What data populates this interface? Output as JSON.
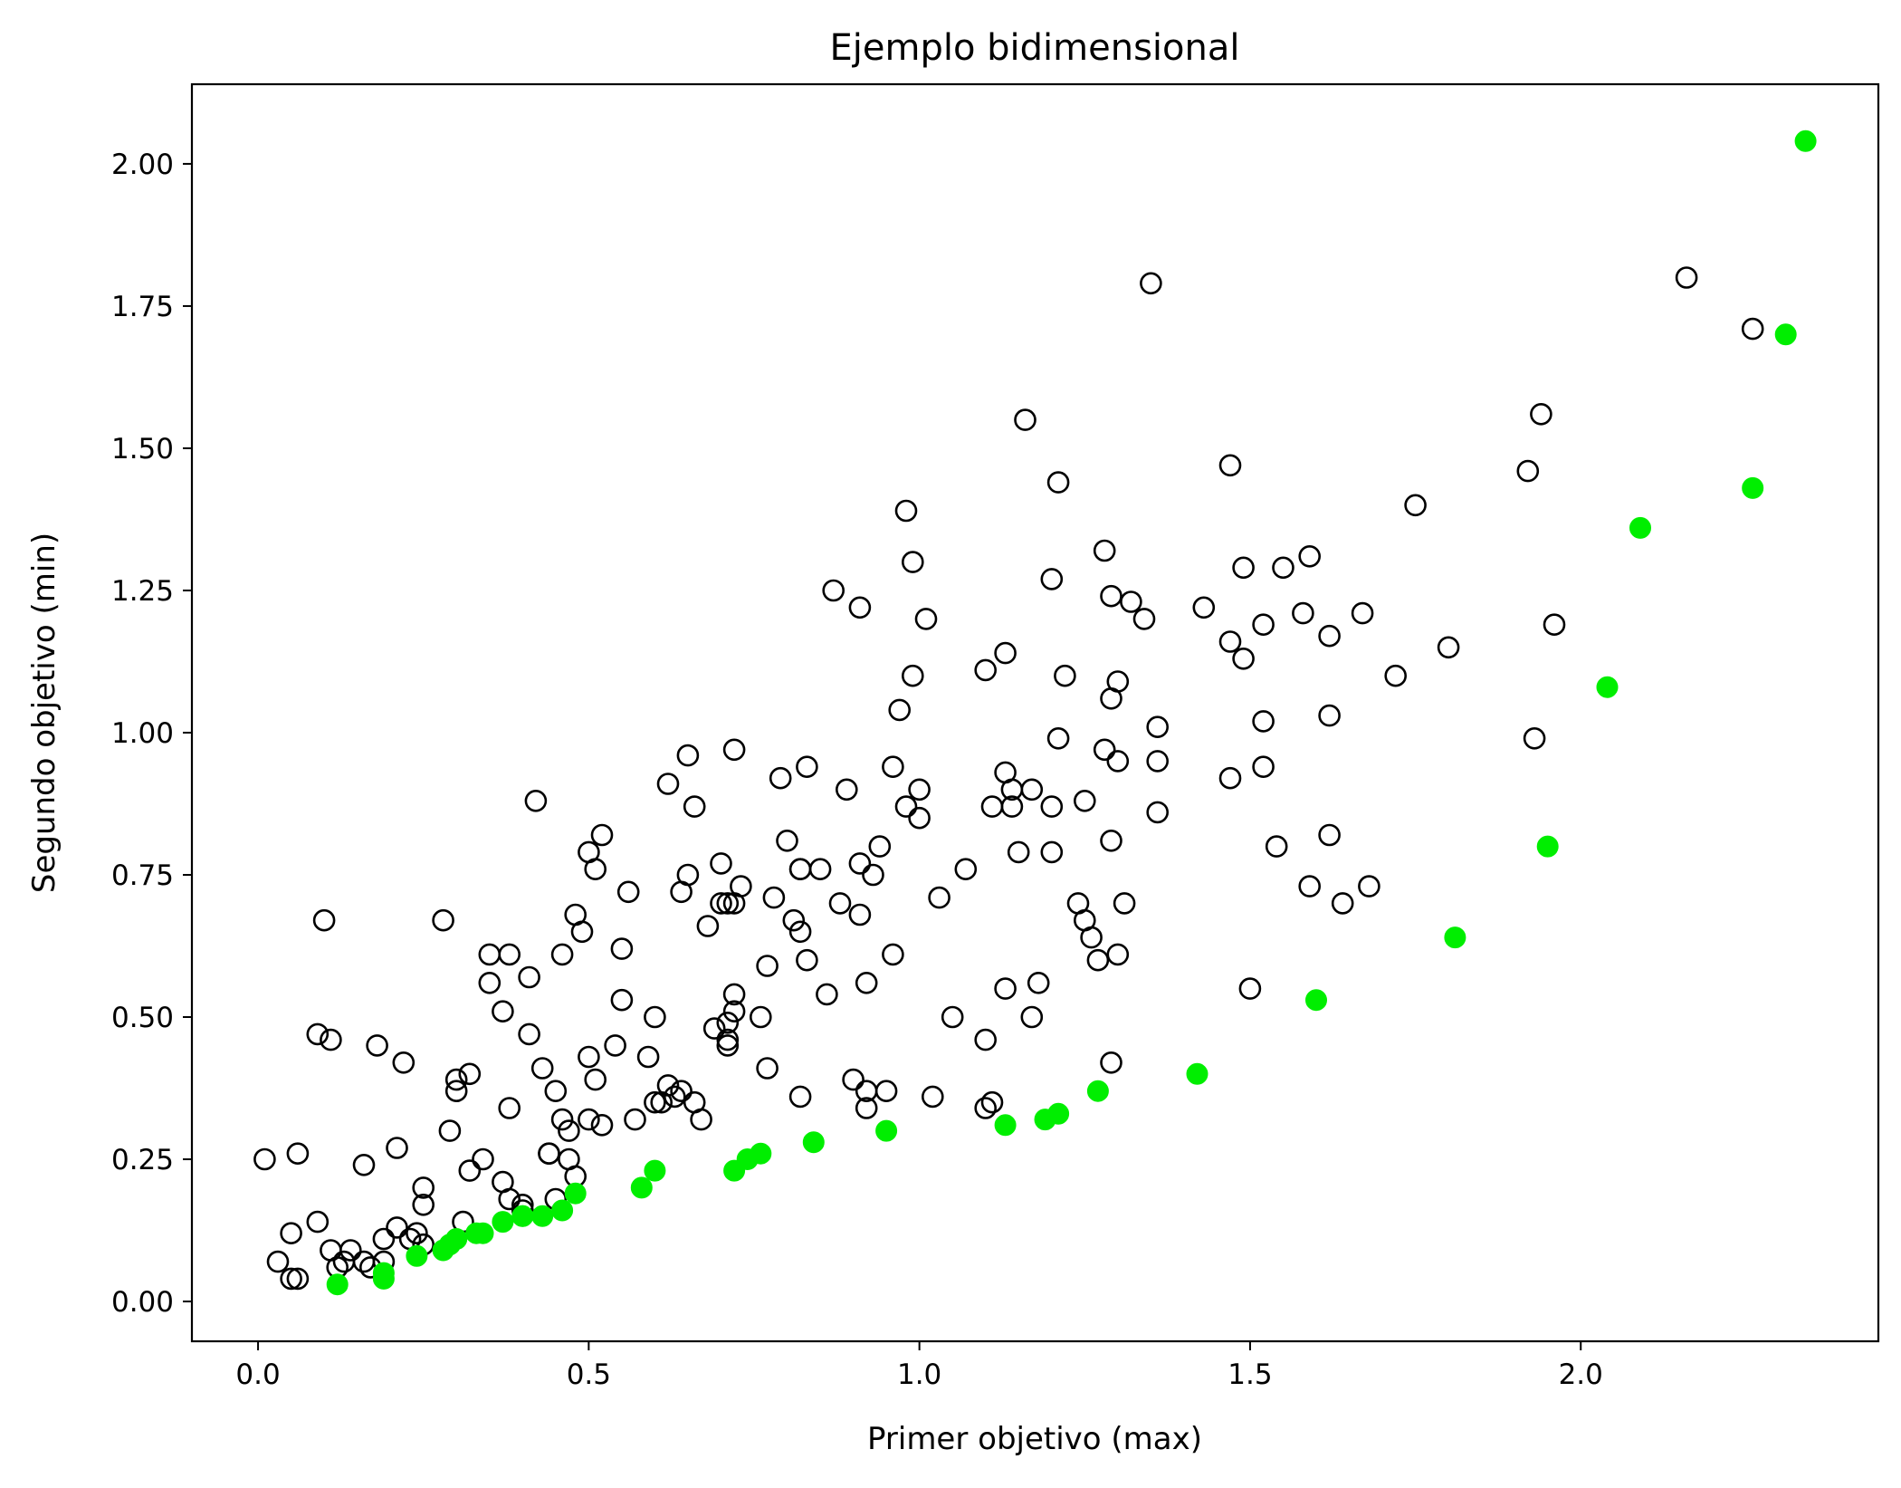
{
  "chart_data": {
    "type": "scatter",
    "title": "Ejemplo bidimensional",
    "xlabel": "Primer objetivo (max)",
    "ylabel": "Segundo objetivo (min)",
    "xlim": [
      -0.1,
      2.45
    ],
    "ylim": [
      -0.07,
      2.14
    ],
    "xticks": [
      0.0,
      0.5,
      1.0,
      1.5,
      2.0
    ],
    "xtick_labels": [
      "0.0",
      "0.5",
      "1.0",
      "1.5",
      "2.0"
    ],
    "yticks": [
      0.0,
      0.25,
      0.5,
      0.75,
      1.0,
      1.25,
      1.5,
      1.75,
      2.0
    ],
    "ytick_labels": [
      "0.00",
      "0.25",
      "0.50",
      "0.75",
      "1.00",
      "1.25",
      "1.50",
      "1.75",
      "2.00"
    ],
    "grid": false,
    "legend": "none",
    "colors": {
      "dominated_edge": "#000000",
      "pareto_fill": "#00ee00"
    },
    "series": [
      {
        "marker": "hollow-circle",
        "color": "#000000",
        "points": [
          [
            0.01,
            0.25
          ],
          [
            0.06,
            0.26
          ],
          [
            0.03,
            0.07
          ],
          [
            0.05,
            0.12
          ],
          [
            0.05,
            0.04
          ],
          [
            0.06,
            0.04
          ],
          [
            0.09,
            0.14
          ],
          [
            0.1,
            0.67
          ],
          [
            0.09,
            0.47
          ],
          [
            0.11,
            0.46
          ],
          [
            0.11,
            0.09
          ],
          [
            0.12,
            0.06
          ],
          [
            0.13,
            0.07
          ],
          [
            0.14,
            0.09
          ],
          [
            0.16,
            0.24
          ],
          [
            0.16,
            0.07
          ],
          [
            0.17,
            0.06
          ],
          [
            0.18,
            0.45
          ],
          [
            0.19,
            0.07
          ],
          [
            0.19,
            0.11
          ],
          [
            0.21,
            0.27
          ],
          [
            0.21,
            0.13
          ],
          [
            0.22,
            0.42
          ],
          [
            0.23,
            0.11
          ],
          [
            0.24,
            0.12
          ],
          [
            0.25,
            0.17
          ],
          [
            0.25,
            0.2
          ],
          [
            0.25,
            0.1
          ],
          [
            0.28,
            0.67
          ],
          [
            0.29,
            0.3
          ],
          [
            0.3,
            0.37
          ],
          [
            0.3,
            0.39
          ],
          [
            0.31,
            0.14
          ],
          [
            0.32,
            0.4
          ],
          [
            0.32,
            0.23
          ],
          [
            0.34,
            0.25
          ],
          [
            0.35,
            0.61
          ],
          [
            0.35,
            0.56
          ],
          [
            0.37,
            0.51
          ],
          [
            0.37,
            0.21
          ],
          [
            0.38,
            0.61
          ],
          [
            0.38,
            0.34
          ],
          [
            0.38,
            0.18
          ],
          [
            0.4,
            0.17
          ],
          [
            0.4,
            0.16
          ],
          [
            0.41,
            0.57
          ],
          [
            0.41,
            0.47
          ],
          [
            0.42,
            0.88
          ],
          [
            0.43,
            0.41
          ],
          [
            0.44,
            0.26
          ],
          [
            0.44,
            0.26
          ],
          [
            0.45,
            0.37
          ],
          [
            0.45,
            0.18
          ],
          [
            0.46,
            0.61
          ],
          [
            0.46,
            0.32
          ],
          [
            0.47,
            0.3
          ],
          [
            0.47,
            0.25
          ],
          [
            0.48,
            0.68
          ],
          [
            0.48,
            0.22
          ],
          [
            0.49,
            0.65
          ],
          [
            0.5,
            0.79
          ],
          [
            0.5,
            0.43
          ],
          [
            0.5,
            0.32
          ],
          [
            0.51,
            0.76
          ],
          [
            0.51,
            0.39
          ],
          [
            0.52,
            0.31
          ],
          [
            0.52,
            0.82
          ],
          [
            0.54,
            0.45
          ],
          [
            0.55,
            0.62
          ],
          [
            0.55,
            0.53
          ],
          [
            0.56,
            0.72
          ],
          [
            0.57,
            0.32
          ],
          [
            0.59,
            0.43
          ],
          [
            0.6,
            0.5
          ],
          [
            0.6,
            0.35
          ],
          [
            0.61,
            0.35
          ],
          [
            0.62,
            0.91
          ],
          [
            0.62,
            0.38
          ],
          [
            0.63,
            0.36
          ],
          [
            0.64,
            0.72
          ],
          [
            0.64,
            0.37
          ],
          [
            0.65,
            0.75
          ],
          [
            0.65,
            0.96
          ],
          [
            0.66,
            0.35
          ],
          [
            0.66,
            0.87
          ],
          [
            0.67,
            0.32
          ],
          [
            0.68,
            0.66
          ],
          [
            0.69,
            0.48
          ],
          [
            0.7,
            0.77
          ],
          [
            0.7,
            0.7
          ],
          [
            0.71,
            0.7
          ],
          [
            0.71,
            0.49
          ],
          [
            0.71,
            0.46
          ],
          [
            0.71,
            0.45
          ],
          [
            0.72,
            0.97
          ],
          [
            0.72,
            0.54
          ],
          [
            0.72,
            0.51
          ],
          [
            0.72,
            0.7
          ],
          [
            0.73,
            0.73
          ],
          [
            0.76,
            0.5
          ],
          [
            0.77,
            0.41
          ],
          [
            0.77,
            0.59
          ],
          [
            0.78,
            0.71
          ],
          [
            0.79,
            0.92
          ],
          [
            0.8,
            0.81
          ],
          [
            0.81,
            0.67
          ],
          [
            0.82,
            0.76
          ],
          [
            0.82,
            0.76
          ],
          [
            0.82,
            0.65
          ],
          [
            0.83,
            0.6
          ],
          [
            0.83,
            0.94
          ],
          [
            0.82,
            0.36
          ],
          [
            0.85,
            0.76
          ],
          [
            0.86,
            0.54
          ],
          [
            0.87,
            1.25
          ],
          [
            0.88,
            0.7
          ],
          [
            0.89,
            0.9
          ],
          [
            0.9,
            0.39
          ],
          [
            0.91,
            0.77
          ],
          [
            0.91,
            0.68
          ],
          [
            0.91,
            1.22
          ],
          [
            0.92,
            0.56
          ],
          [
            0.92,
            0.37
          ],
          [
            0.92,
            0.34
          ],
          [
            0.93,
            0.75
          ],
          [
            0.94,
            0.8
          ],
          [
            0.95,
            0.37
          ],
          [
            0.96,
            0.61
          ],
          [
            0.96,
            0.94
          ],
          [
            0.97,
            1.04
          ],
          [
            0.98,
            0.87
          ],
          [
            0.98,
            1.39
          ],
          [
            0.99,
            1.3
          ],
          [
            0.99,
            1.1
          ],
          [
            1.0,
            0.85
          ],
          [
            1.0,
            0.9
          ],
          [
            1.01,
            1.2
          ],
          [
            1.02,
            0.36
          ],
          [
            1.03,
            0.71
          ],
          [
            1.05,
            0.5
          ],
          [
            1.07,
            0.76
          ],
          [
            1.1,
            0.34
          ],
          [
            1.11,
            0.35
          ],
          [
            1.1,
            0.46
          ],
          [
            1.1,
            1.11
          ],
          [
            1.11,
            0.87
          ],
          [
            1.13,
            0.55
          ],
          [
            1.13,
            0.93
          ],
          [
            1.13,
            1.14
          ],
          [
            1.14,
            0.87
          ],
          [
            1.14,
            0.9
          ],
          [
            1.15,
            0.79
          ],
          [
            1.16,
            1.55
          ],
          [
            1.17,
            0.9
          ],
          [
            1.17,
            0.5
          ],
          [
            1.18,
            0.56
          ],
          [
            1.2,
            0.87
          ],
          [
            1.2,
            1.27
          ],
          [
            1.2,
            0.79
          ],
          [
            1.21,
            1.44
          ],
          [
            1.21,
            0.99
          ],
          [
            1.22,
            1.1
          ],
          [
            1.24,
            0.7
          ],
          [
            1.25,
            0.67
          ],
          [
            1.25,
            0.88
          ],
          [
            1.26,
            0.64
          ],
          [
            1.27,
            0.6
          ],
          [
            1.28,
            0.97
          ],
          [
            1.28,
            1.32
          ],
          [
            1.29,
            1.24
          ],
          [
            1.29,
            1.06
          ],
          [
            1.29,
            0.81
          ],
          [
            1.29,
            0.42
          ],
          [
            1.3,
            1.09
          ],
          [
            1.3,
            0.95
          ],
          [
            1.3,
            0.61
          ],
          [
            1.31,
            0.7
          ],
          [
            1.32,
            1.23
          ],
          [
            1.34,
            1.2
          ],
          [
            1.35,
            1.79
          ],
          [
            1.36,
            1.01
          ],
          [
            1.36,
            0.95
          ],
          [
            1.36,
            0.86
          ],
          [
            1.43,
            1.22
          ],
          [
            1.47,
            0.92
          ],
          [
            1.47,
            1.16
          ],
          [
            1.47,
            1.47
          ],
          [
            1.49,
            1.13
          ],
          [
            1.49,
            1.29
          ],
          [
            1.5,
            0.55
          ],
          [
            1.52,
            1.02
          ],
          [
            1.52,
            0.94
          ],
          [
            1.52,
            1.19
          ],
          [
            1.54,
            0.8
          ],
          [
            1.55,
            1.29
          ],
          [
            1.58,
            1.21
          ],
          [
            1.59,
            1.31
          ],
          [
            1.59,
            0.73
          ],
          [
            1.62,
            0.82
          ],
          [
            1.62,
            1.03
          ],
          [
            1.62,
            1.17
          ],
          [
            1.64,
            0.7
          ],
          [
            1.67,
            1.21
          ],
          [
            1.68,
            0.73
          ],
          [
            1.72,
            1.1
          ],
          [
            1.75,
            1.4
          ],
          [
            1.8,
            1.15
          ],
          [
            1.92,
            1.46
          ],
          [
            1.93,
            0.99
          ],
          [
            1.94,
            1.56
          ],
          [
            1.96,
            1.19
          ],
          [
            2.16,
            1.8
          ],
          [
            2.26,
            1.71
          ]
        ]
      },
      {
        "marker": "filled-circle",
        "color": "#00ee00",
        "points": [
          [
            0.12,
            0.03
          ],
          [
            0.19,
            0.04
          ],
          [
            0.19,
            0.05
          ],
          [
            0.24,
            0.08
          ],
          [
            0.28,
            0.09
          ],
          [
            0.29,
            0.1
          ],
          [
            0.3,
            0.11
          ],
          [
            0.33,
            0.12
          ],
          [
            0.34,
            0.12
          ],
          [
            0.37,
            0.14
          ],
          [
            0.4,
            0.15
          ],
          [
            0.4,
            0.15
          ],
          [
            0.43,
            0.15
          ],
          [
            0.46,
            0.16
          ],
          [
            0.48,
            0.19
          ],
          [
            0.58,
            0.2
          ],
          [
            0.6,
            0.23
          ],
          [
            0.72,
            0.23
          ],
          [
            0.74,
            0.25
          ],
          [
            0.76,
            0.26
          ],
          [
            0.84,
            0.28
          ],
          [
            0.95,
            0.3
          ],
          [
            1.13,
            0.31
          ],
          [
            1.19,
            0.32
          ],
          [
            1.21,
            0.33
          ],
          [
            1.27,
            0.37
          ],
          [
            1.42,
            0.4
          ],
          [
            1.6,
            0.53
          ],
          [
            1.81,
            0.64
          ],
          [
            1.95,
            0.8
          ],
          [
            2.04,
            1.08
          ],
          [
            2.09,
            1.36
          ],
          [
            2.26,
            1.43
          ],
          [
            2.31,
            1.7
          ],
          [
            2.34,
            2.04
          ]
        ]
      }
    ]
  }
}
